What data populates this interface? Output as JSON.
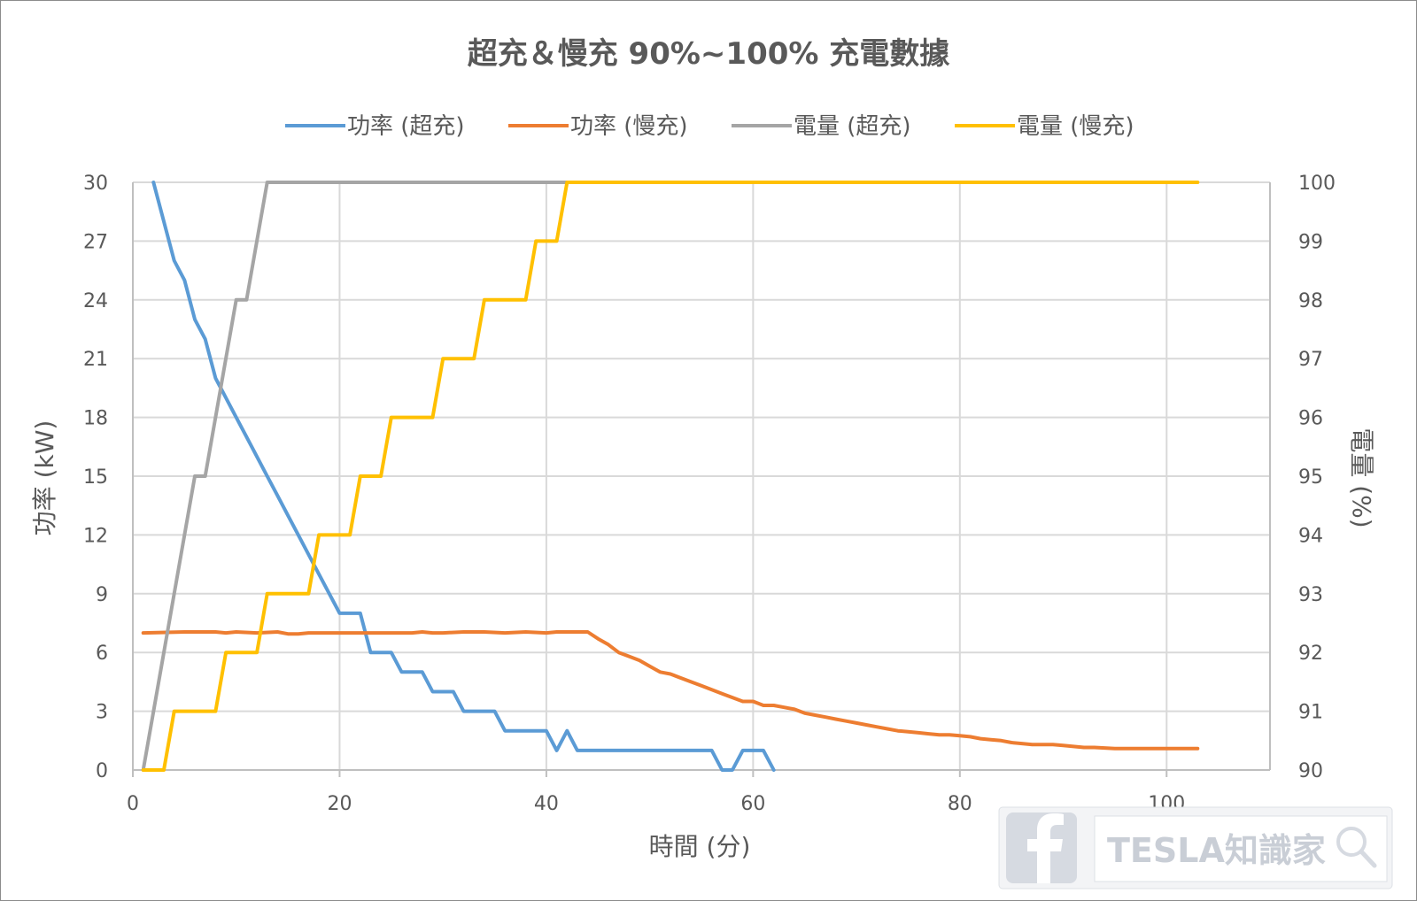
{
  "chart_data": {
    "type": "line",
    "title": "超充＆慢充 90%~100% 充電數據",
    "xlabel": "時間 (分)",
    "ylabel": "功率 (kW)",
    "y2label": "電量 (%)",
    "xlim": [
      0,
      110
    ],
    "ylim": [
      0,
      30
    ],
    "y2lim": [
      90,
      100
    ],
    "x_ticks": [
      "0",
      "20",
      "40",
      "60",
      "80",
      "100"
    ],
    "y_ticks": [
      "0",
      "3",
      "6",
      "9",
      "12",
      "15",
      "18",
      "21",
      "24",
      "27",
      "30"
    ],
    "y2_ticks": [
      "90",
      "91",
      "92",
      "93",
      "94",
      "95",
      "96",
      "97",
      "98",
      "99",
      "100"
    ],
    "grid": true,
    "legend_position": "top-center",
    "series": [
      {
        "name": "功率 (超充)",
        "axis": "left",
        "color": "#5b9bd5",
        "points": [
          [
            2,
            30
          ],
          [
            3,
            28
          ],
          [
            4,
            26
          ],
          [
            5,
            25
          ],
          [
            6,
            23
          ],
          [
            7,
            22
          ],
          [
            8,
            20
          ],
          [
            9,
            19
          ],
          [
            10,
            18
          ],
          [
            11,
            17
          ],
          [
            12,
            16
          ],
          [
            13,
            15
          ],
          [
            14,
            14
          ],
          [
            15,
            13
          ],
          [
            16,
            12
          ],
          [
            17,
            11
          ],
          [
            18,
            10
          ],
          [
            19,
            9
          ],
          [
            20,
            8
          ],
          [
            21,
            8
          ],
          [
            22,
            8
          ],
          [
            23,
            6
          ],
          [
            24,
            6
          ],
          [
            25,
            6
          ],
          [
            26,
            5
          ],
          [
            27,
            5
          ],
          [
            28,
            5
          ],
          [
            29,
            4
          ],
          [
            30,
            4
          ],
          [
            31,
            4
          ],
          [
            32,
            3
          ],
          [
            33,
            3
          ],
          [
            34,
            3
          ],
          [
            35,
            3
          ],
          [
            36,
            2
          ],
          [
            37,
            2
          ],
          [
            38,
            2
          ],
          [
            39,
            2
          ],
          [
            40,
            2
          ],
          [
            41,
            1
          ],
          [
            42,
            2
          ],
          [
            43,
            1
          ],
          [
            44,
            1
          ],
          [
            45,
            1
          ],
          [
            50,
            1
          ],
          [
            55,
            1
          ],
          [
            56,
            1
          ],
          [
            57,
            0
          ],
          [
            58,
            0
          ],
          [
            59,
            1
          ],
          [
            60,
            1
          ],
          [
            61,
            1
          ],
          [
            62,
            0
          ]
        ]
      },
      {
        "name": "功率 (慢充)",
        "axis": "left",
        "color": "#ed7d31",
        "points": [
          [
            1,
            7
          ],
          [
            5,
            7.05
          ],
          [
            8,
            7.05
          ],
          [
            9,
            7
          ],
          [
            10,
            7.05
          ],
          [
            12,
            7
          ],
          [
            14,
            7.05
          ],
          [
            15,
            6.95
          ],
          [
            16,
            6.95
          ],
          [
            17,
            7
          ],
          [
            20,
            7
          ],
          [
            22,
            7
          ],
          [
            24,
            7
          ],
          [
            27,
            7
          ],
          [
            28,
            7.05
          ],
          [
            29,
            7
          ],
          [
            30,
            7
          ],
          [
            32,
            7.05
          ],
          [
            34,
            7.05
          ],
          [
            36,
            7
          ],
          [
            38,
            7.05
          ],
          [
            40,
            7
          ],
          [
            41,
            7.05
          ],
          [
            42,
            7.05
          ],
          [
            44,
            7.05
          ],
          [
            45,
            6.7
          ],
          [
            46,
            6.4
          ],
          [
            47,
            6
          ],
          [
            48,
            5.8
          ],
          [
            49,
            5.6
          ],
          [
            50,
            5.3
          ],
          [
            51,
            5
          ],
          [
            52,
            4.9
          ],
          [
            53,
            4.7
          ],
          [
            54,
            4.5
          ],
          [
            55,
            4.3
          ],
          [
            56,
            4.1
          ],
          [
            57,
            3.9
          ],
          [
            58,
            3.7
          ],
          [
            59,
            3.5
          ],
          [
            60,
            3.5
          ],
          [
            61,
            3.3
          ],
          [
            62,
            3.3
          ],
          [
            63,
            3.2
          ],
          [
            64,
            3.1
          ],
          [
            65,
            2.9
          ],
          [
            66,
            2.8
          ],
          [
            67,
            2.7
          ],
          [
            68,
            2.6
          ],
          [
            69,
            2.5
          ],
          [
            70,
            2.4
          ],
          [
            71,
            2.3
          ],
          [
            72,
            2.2
          ],
          [
            73,
            2.1
          ],
          [
            74,
            2
          ],
          [
            75,
            1.95
          ],
          [
            76,
            1.9
          ],
          [
            77,
            1.85
          ],
          [
            78,
            1.8
          ],
          [
            79,
            1.8
          ],
          [
            80,
            1.75
          ],
          [
            81,
            1.7
          ],
          [
            82,
            1.6
          ],
          [
            83,
            1.55
          ],
          [
            84,
            1.5
          ],
          [
            85,
            1.4
          ],
          [
            86,
            1.35
          ],
          [
            87,
            1.3
          ],
          [
            88,
            1.3
          ],
          [
            89,
            1.3
          ],
          [
            90,
            1.25
          ],
          [
            91,
            1.2
          ],
          [
            92,
            1.15
          ],
          [
            93,
            1.15
          ],
          [
            95,
            1.1
          ],
          [
            97,
            1.1
          ],
          [
            100,
            1.1
          ],
          [
            103,
            1.1
          ]
        ]
      },
      {
        "name": "電量 (超充)",
        "axis": "right",
        "color": "#a5a5a5",
        "points": [
          [
            1,
            90
          ],
          [
            6,
            95
          ],
          [
            7,
            95
          ],
          [
            10,
            98
          ],
          [
            11,
            98
          ],
          [
            13,
            100
          ],
          [
            20,
            100
          ],
          [
            30,
            100
          ],
          [
            40,
            100
          ],
          [
            42,
            100
          ]
        ]
      },
      {
        "name": "電量 (慢充)",
        "axis": "right",
        "color": "#ffc000",
        "points": [
          [
            1,
            90
          ],
          [
            3,
            90
          ],
          [
            4,
            91
          ],
          [
            8,
            91
          ],
          [
            9,
            92
          ],
          [
            12,
            92
          ],
          [
            13,
            93
          ],
          [
            17,
            93
          ],
          [
            18,
            94
          ],
          [
            21,
            94
          ],
          [
            22,
            95
          ],
          [
            24,
            95
          ],
          [
            25,
            96
          ],
          [
            29,
            96
          ],
          [
            30,
            97
          ],
          [
            33,
            97
          ],
          [
            34,
            98
          ],
          [
            38,
            98
          ],
          [
            39,
            99
          ],
          [
            41,
            99
          ],
          [
            42,
            100
          ],
          [
            60,
            100
          ],
          [
            80,
            100
          ],
          [
            103,
            100
          ]
        ]
      }
    ]
  },
  "watermark": {
    "icon": "facebook-icon",
    "text": "TESLA知識家",
    "search_icon": "search-icon"
  }
}
